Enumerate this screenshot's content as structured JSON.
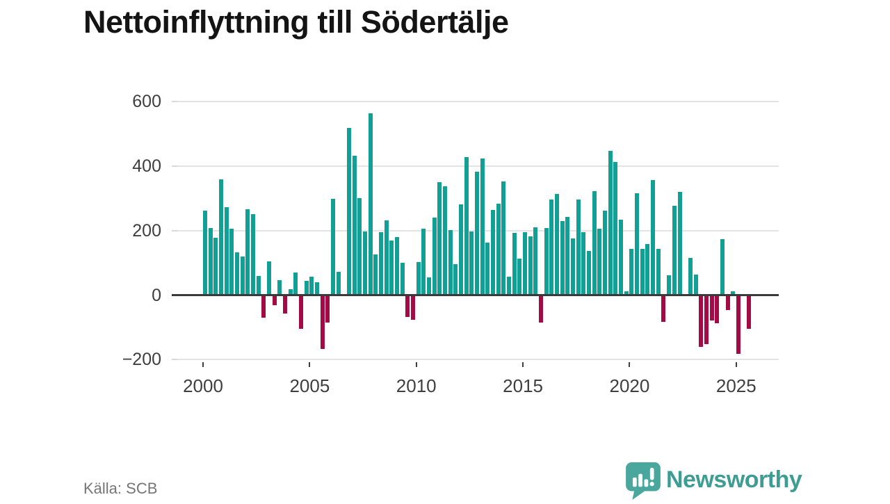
{
  "title": "Nettoinflyttning till Södertälje",
  "source_label": "Källa: SCB",
  "branding": {
    "logo_text": "Newsworthy",
    "logo_icon": "newsworthy-speech-bubble-bar-chart-icon",
    "brand_teal": "#3E9D93",
    "icon_fill": "#4AA79D"
  },
  "colors": {
    "positive_bar": "#12A095",
    "negative_bar": "#A40B44",
    "zero_axis": "#3A3A3A",
    "gridline": "#E3E3E3",
    "tick_label": "#3F3F3F",
    "source_text": "#767676",
    "title_text": "#141414"
  },
  "chart_data": {
    "type": "bar",
    "title": "Nettoinflyttning till Södertälje",
    "frequency": "quarterly",
    "start_period": "2000-Q1",
    "end_period": "2025-Q3",
    "xlabel": "",
    "ylabel": "",
    "ylim": [
      -200,
      600
    ],
    "grid": "horizontal",
    "legend": "none",
    "y_ticks": [
      600,
      400,
      200,
      0,
      -200
    ],
    "y_tick_labels": [
      "600",
      "400",
      "200",
      "0",
      "−200"
    ],
    "x_tick_years": [
      2000,
      2005,
      2010,
      2015,
      2020,
      2025
    ],
    "x_tick_labels": [
      "2000",
      "2005",
      "2010",
      "2015",
      "2020",
      "2025"
    ],
    "values": [
      258,
      204,
      175,
      355,
      270,
      202,
      130,
      117,
      263,
      249,
      55,
      -67,
      102,
      -27,
      44,
      -53,
      16,
      66,
      -101,
      40,
      53,
      37,
      -164,
      -83,
      296,
      68,
      0,
      515,
      430,
      298,
      194,
      560,
      122,
      191,
      228,
      166,
      177,
      98,
      -65,
      -74,
      99,
      202,
      52,
      238,
      347,
      334,
      198,
      93,
      278,
      425,
      193,
      380,
      420,
      160,
      260,
      280,
      350,
      53,
      190,
      110,
      192,
      180,
      206,
      -83,
      205,
      293,
      310,
      226,
      240,
      173,
      293,
      191,
      134,
      320,
      202,
      259,
      445,
      410,
      230,
      9,
      141,
      313,
      141,
      156,
      354,
      140,
      -79,
      59,
      273,
      318,
      0,
      113,
      60,
      -157,
      -148,
      -75,
      -85,
      170,
      -44,
      8,
      -178,
      0,
      -102
    ],
    "source_label": "Källa: SCB"
  }
}
